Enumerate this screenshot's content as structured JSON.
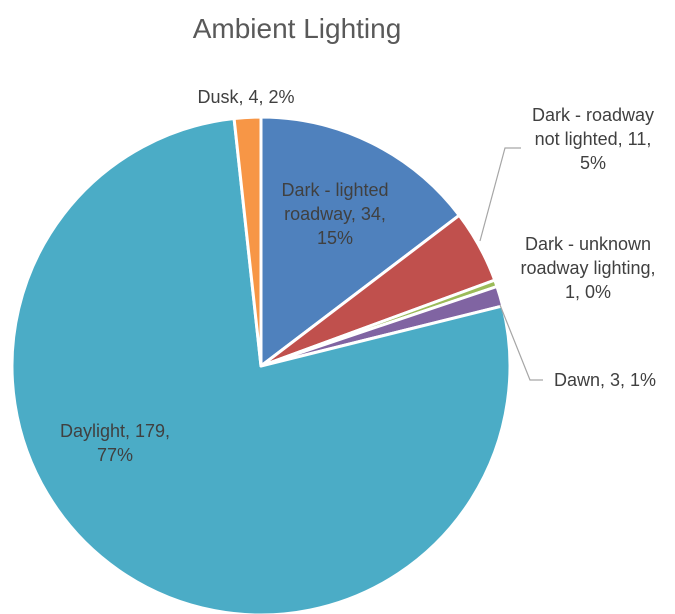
{
  "chart_data": {
    "type": "pie",
    "title": "Ambient Lighting",
    "slices": [
      {
        "name": "Dark - lighted roadway",
        "value": 34,
        "percent": "15%",
        "color": "#4f81bd",
        "label_lines": [
          "Dark - lighted",
          "roadway, 34,",
          "15%"
        ]
      },
      {
        "name": "Dark - roadway not lighted",
        "value": 11,
        "percent": "5%",
        "color": "#c0504d",
        "label_lines": [
          "Dark - roadway",
          "not lighted, 11,",
          "5%"
        ]
      },
      {
        "name": "Dark - unknown roadway lighting",
        "value": 1,
        "percent": "0%",
        "color": "#9bbb59",
        "label_lines": [
          "Dark - unknown",
          "roadway lighting,",
          "1, 0%"
        ]
      },
      {
        "name": "Dawn",
        "value": 3,
        "percent": "1%",
        "color": "#8064a2",
        "label_lines": [
          "Dawn, 3, 1%"
        ]
      },
      {
        "name": "Daylight",
        "value": 179,
        "percent": "77%",
        "color": "#4bacc6",
        "label_lines": [
          "Daylight, 179,",
          "77%"
        ]
      },
      {
        "name": "Dusk",
        "value": 4,
        "percent": "2%",
        "color": "#f79646",
        "label_lines": [
          "Dusk, 4, 2%"
        ]
      }
    ],
    "start_angle_deg": 0,
    "direction": "clockwise",
    "legend": "none"
  }
}
